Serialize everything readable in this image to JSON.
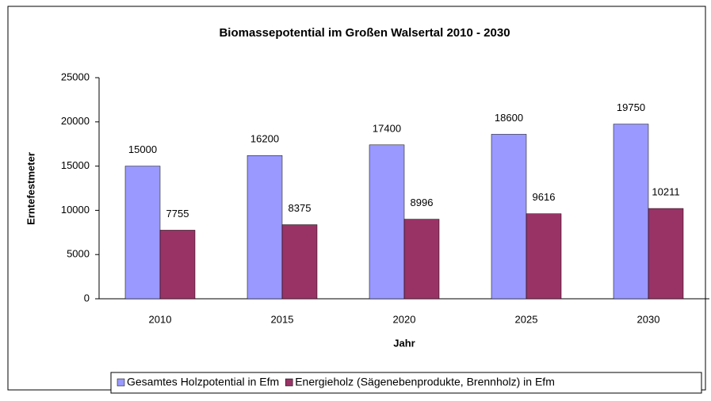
{
  "chart_data": {
    "type": "bar",
    "title": "Biomassepotential im Großen Walsertal 2010 - 2030",
    "x_label": "Jahr",
    "y_label": "Erntefestmeter",
    "categories": [
      "2010",
      "2015",
      "2020",
      "2025",
      "2030"
    ],
    "series": [
      {
        "name": "Gesamtes Holzpotential in Efm",
        "color": "#9999ff",
        "values": [
          15000,
          16200,
          17400,
          18600,
          19750
        ]
      },
      {
        "name": "Energieholz (Sägenebenprodukte, Brennholz) in Efm",
        "color": "#993366",
        "values": [
          7755,
          8375,
          8996,
          9616,
          10211
        ]
      }
    ],
    "ylim": [
      0,
      25000
    ],
    "yticks": [
      0,
      5000,
      10000,
      15000,
      20000,
      25000
    ],
    "legend": "bottom"
  }
}
